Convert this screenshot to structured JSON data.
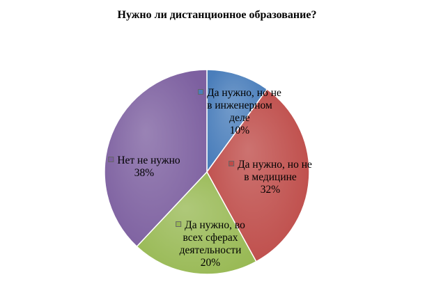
{
  "chart_data": {
    "type": "pie",
    "title": "Нужно ли дистанционное  образование?",
    "slices": [
      {
        "name": "Да нужно, но не в инженерном деле",
        "lines": [
          "Да нужно, но не",
          "в инженерном",
          "деле"
        ],
        "value": 10,
        "value_label": "10%",
        "color": "#4a7ebb"
      },
      {
        "name": "Да нужно, но не в медицине",
        "lines": [
          "Да нужно, но не",
          "в медицине"
        ],
        "value": 32,
        "value_label": "32%",
        "color": "#be4b48"
      },
      {
        "name": "Да нужно, во всех сферах деятельности",
        "lines": [
          "Да нужно, во",
          "всех сферах",
          "деятельности"
        ],
        "value": 20,
        "value_label": "20%",
        "color": "#98b954"
      },
      {
        "name": "Нет не нужно",
        "lines": [
          "Нет не нужно"
        ],
        "value": 38,
        "value_label": "38%",
        "color": "#7d60a0"
      }
    ]
  }
}
